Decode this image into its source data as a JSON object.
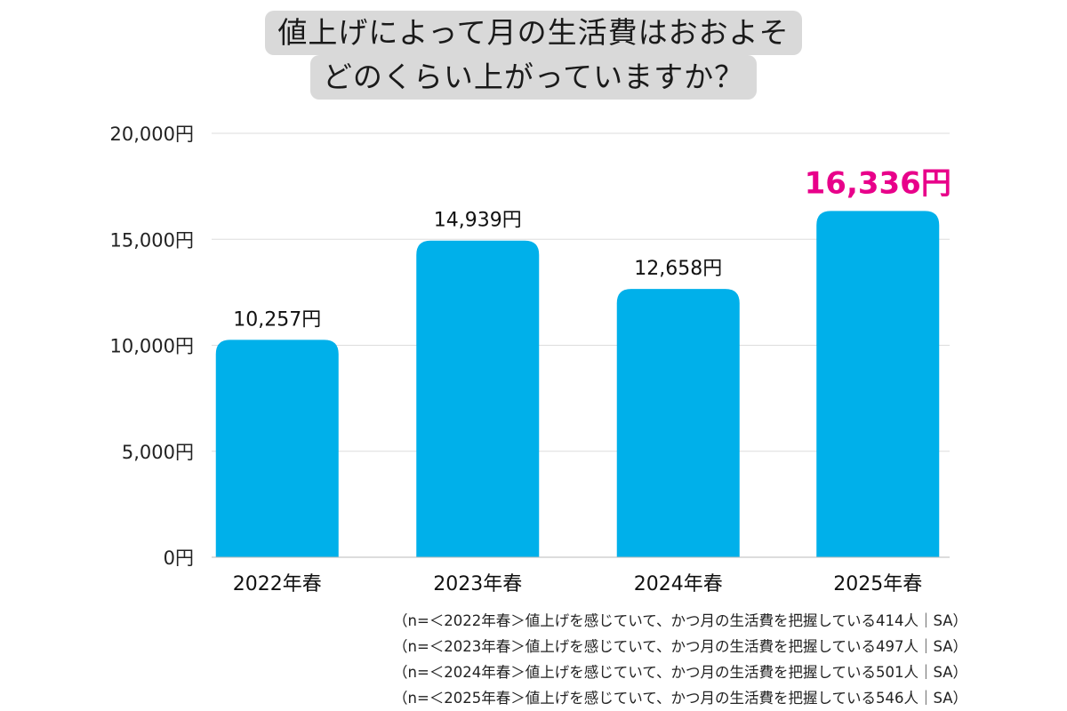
{
  "chart_data": {
    "type": "bar",
    "title_lines": [
      "値上げによって月の生活費はおおよそ",
      "どのくらい上がっていますか？"
    ],
    "categories": [
      "2022年春",
      "2023年春",
      "2024年春",
      "2025年春"
    ],
    "values": [
      10257,
      14939,
      12658,
      16336
    ],
    "value_labels": [
      "10,257円",
      "14,939円",
      "12,658円",
      "16,336円"
    ],
    "highlight_index": 3,
    "ylim": [
      0,
      20000
    ],
    "yticks": [
      0,
      5000,
      10000,
      15000,
      20000
    ],
    "ytick_labels": [
      "0円",
      "5,000円",
      "10,000円",
      "15,000円",
      "20,000円"
    ],
    "xlabel": "",
    "ylabel": "",
    "grid": true,
    "legend": "none",
    "colors": {
      "bar": "#00b0ea",
      "highlight_label": "#e8008a",
      "grid": "#dddddd",
      "title_bg": "#d9d9d9"
    }
  },
  "footnotes": [
    "（n=＜2022年春＞値上げを感じていて、かつ月の生活費を把握している414人｜SA）",
    "（n=＜2023年春＞値上げを感じていて、かつ月の生活費を把握している497人｜SA）",
    "（n=＜2024年春＞値上げを感じていて、かつ月の生活費を把握している501人｜SA）",
    "（n=＜2025年春＞値上げを感じていて、かつ月の生活費を把握している546人｜SA）"
  ]
}
